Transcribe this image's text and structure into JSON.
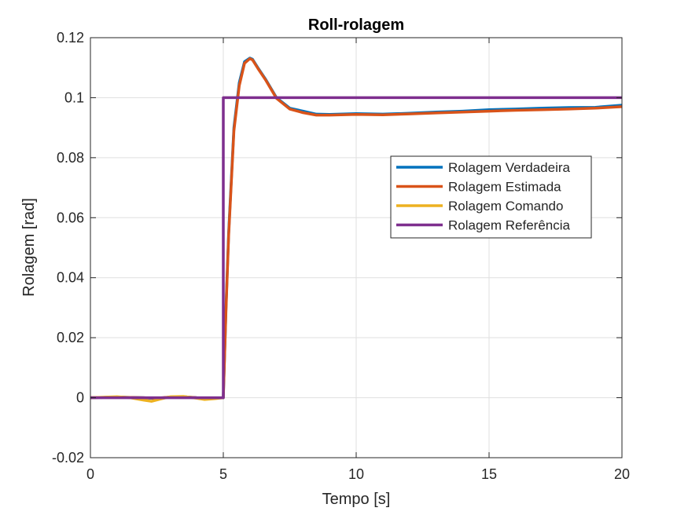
{
  "chart_data": {
    "type": "line",
    "title": "Roll-rolagem",
    "xlabel": "Tempo [s]",
    "ylabel": "Rolagem [rad]",
    "xlim": [
      0,
      20
    ],
    "ylim": [
      -0.02,
      0.12
    ],
    "xticks": [
      0,
      5,
      10,
      15,
      20
    ],
    "xtick_labels": [
      "0",
      "5",
      "10",
      "15",
      "20"
    ],
    "yticks": [
      -0.02,
      0,
      0.02,
      0.04,
      0.06,
      0.08,
      0.1,
      0.12
    ],
    "ytick_labels": [
      "-0.02",
      "0",
      "0.02",
      "0.04",
      "0.06",
      "0.08",
      "0.1",
      "0.12"
    ],
    "grid": true,
    "legend_position": "center-right",
    "series": [
      {
        "name": "Rolagem Verdadeira",
        "color": "#0072BD",
        "x": [
          0,
          1,
          1.5,
          2,
          2.5,
          3,
          3.5,
          4,
          4.5,
          5,
          5.1,
          5.2,
          5.4,
          5.6,
          5.8,
          6,
          6.1,
          6.3,
          6.6,
          7,
          7.5,
          8,
          8.5,
          9,
          10,
          11,
          12,
          13,
          14,
          15,
          16,
          17,
          18,
          19,
          20
        ],
        "y": [
          0,
          0.0002,
          0.0001,
          0,
          -0.0003,
          0.0002,
          0.0003,
          0,
          -0.0001,
          0,
          0.03,
          0.055,
          0.09,
          0.105,
          0.112,
          0.1132,
          0.1128,
          0.11,
          0.106,
          0.1,
          0.0965,
          0.0955,
          0.0945,
          0.0944,
          0.0947,
          0.0945,
          0.0948,
          0.0952,
          0.0955,
          0.096,
          0.0962,
          0.0965,
          0.0967,
          0.0968,
          0.0975
        ]
      },
      {
        "name": "Rolagem Estimada",
        "color": "#D95319",
        "x": [
          0,
          1,
          1.5,
          2,
          2.5,
          3,
          3.5,
          4,
          4.5,
          5,
          5.1,
          5.2,
          5.4,
          5.6,
          5.8,
          6,
          6.1,
          6.3,
          6.6,
          7,
          7.5,
          8,
          8.5,
          9,
          10,
          11,
          12,
          13,
          14,
          15,
          16,
          17,
          18,
          19,
          20
        ],
        "y": [
          0,
          0.0002,
          0.0001,
          0,
          -0.0002,
          0.0002,
          0.0003,
          0,
          -0.0001,
          0,
          0.029,
          0.054,
          0.089,
          0.104,
          0.1115,
          0.113,
          0.1126,
          0.1098,
          0.1058,
          0.0998,
          0.0962,
          0.095,
          0.0942,
          0.0942,
          0.0944,
          0.0943,
          0.0946,
          0.0949,
          0.0952,
          0.0955,
          0.0958,
          0.096,
          0.0962,
          0.0965,
          0.097
        ]
      },
      {
        "name": "Rolagem Comando",
        "color": "#EDB120",
        "x": [
          0,
          1,
          1.5,
          2,
          2.3,
          2.6,
          3,
          3.5,
          4,
          4.3,
          4.7,
          5
        ],
        "y": [
          0,
          0.0003,
          0,
          -0.0008,
          -0.0012,
          -0.0005,
          0.0003,
          0.0004,
          -0.0002,
          -0.0006,
          -0.0003,
          0
        ]
      },
      {
        "name": "Rolagem Referência",
        "color": "#7E2F8E",
        "x": [
          0,
          5,
          5,
          20
        ],
        "y": [
          0,
          0,
          0.1,
          0.1
        ]
      }
    ]
  }
}
